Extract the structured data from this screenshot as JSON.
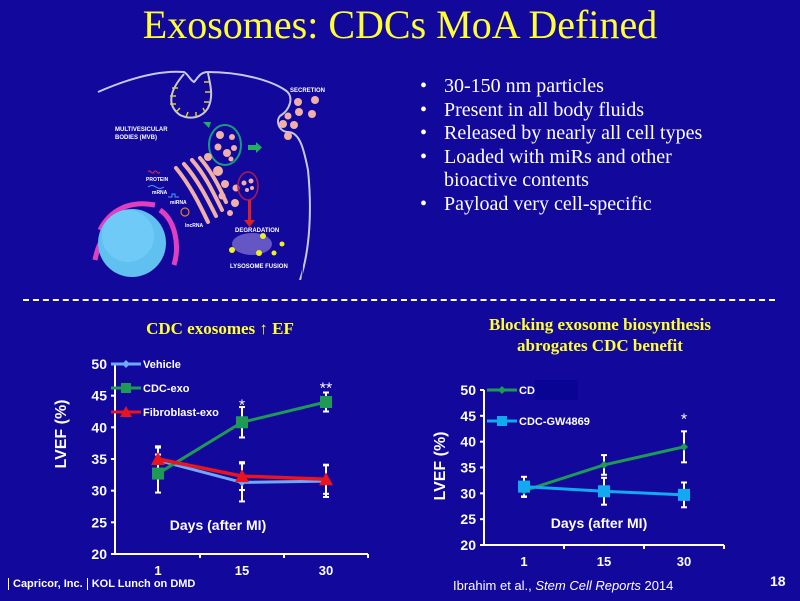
{
  "slide": {
    "title": "Exosomes: CDCs MoA Defined",
    "bullets": [
      "30-150 nm particles",
      "Present in all body fluids",
      "Released by nearly all cell types",
      "Loaded with miRs and other bioactive contents",
      "Payload very cell-specific"
    ],
    "bullet_symbol": "•",
    "diagram_labels": {
      "secretion": "SECRETION",
      "mvb": "MULTIVESICULAR",
      "mvb2": "BODIES (MVB)",
      "protein": "PROTEIN",
      "mrna": "mRNA",
      "mirna": "miRNA",
      "lncrna": "lncRNA",
      "degradation": "DEGRADATION",
      "lysosome": "LYSOSOME FUSION"
    },
    "left_subtitle": "CDC exosomes ↑ EF",
    "right_subtitle_line1": "Blocking exosome biosynthesis",
    "right_subtitle_line2": "abrogates CDC benefit",
    "footer": {
      "company": "Capricor, Inc.",
      "event": "KOL Lunch on DMD",
      "citation_authors": "Ibrahim et al., ",
      "citation_journal": "Stem Cell Reports",
      "citation_year": " 2014",
      "page": "18"
    },
    "colors": {
      "background": "#13089c",
      "title": "#ffff33",
      "vehicle": "#6fa8ff",
      "cdc_exo": "#1f9a55",
      "fibroblast": "#e8141e",
      "gw4869": "#12a9f0"
    }
  },
  "chart_data": [
    {
      "type": "line",
      "title": "CDC exosomes ↑ EF",
      "xlabel": "Days (after MI)",
      "ylabel": "LVEF (%)",
      "categories": [
        "1",
        "15",
        "30"
      ],
      "ylim": [
        20,
        50
      ],
      "yticks": [
        "20",
        "25",
        "30",
        "35",
        "40",
        "45",
        "50"
      ],
      "legend": "top-left",
      "series": [
        {
          "name": "Vehicle",
          "marker": "diamond",
          "color": "#6fa8ff",
          "values": [
            34.8,
            31.3,
            31.5
          ],
          "err": [
            2.0,
            3.0,
            2.5
          ]
        },
        {
          "name": "CDC-exo",
          "marker": "square",
          "color": "#1f9a55",
          "values": [
            32.7,
            40.8,
            44.0
          ],
          "err": [
            3.0,
            2.4,
            1.5
          ]
        },
        {
          "name": "Fibroblast-exo",
          "marker": "triangle",
          "color": "#e8141e",
          "values": [
            35.0,
            32.3,
            31.8
          ],
          "err": [
            2.0,
            2.2,
            2.3
          ]
        }
      ],
      "annotations": [
        {
          "x": "15",
          "text": "*",
          "y": 43.6
        },
        {
          "x": "30",
          "text": "**",
          "y": 46.3
        }
      ]
    },
    {
      "type": "line",
      "title": "Blocking exosome biosynthesis abrogates CDC benefit",
      "xlabel": "Days (after MI)",
      "ylabel": "LVEF (%)",
      "categories": [
        "1",
        "15",
        "30"
      ],
      "ylim": [
        20,
        50
      ],
      "yticks": [
        "20",
        "25",
        "30",
        "35",
        "40",
        "45",
        "50"
      ],
      "legend": "top-left",
      "series": [
        {
          "name": "CDC",
          "marker": "diamond",
          "color": "#1f9a55",
          "values": [
            30.5,
            35.5,
            39.0
          ],
          "err": [
            1.2,
            1.9,
            3.0
          ]
        },
        {
          "name": "CDC-GW4869",
          "marker": "square",
          "color": "#12a9f0",
          "values": [
            31.3,
            30.4,
            29.7
          ],
          "err": [
            1.9,
            2.6,
            2.4
          ]
        }
      ],
      "annotations": [
        {
          "x": "30",
          "text": "*",
          "y": 44.5
        }
      ]
    }
  ]
}
